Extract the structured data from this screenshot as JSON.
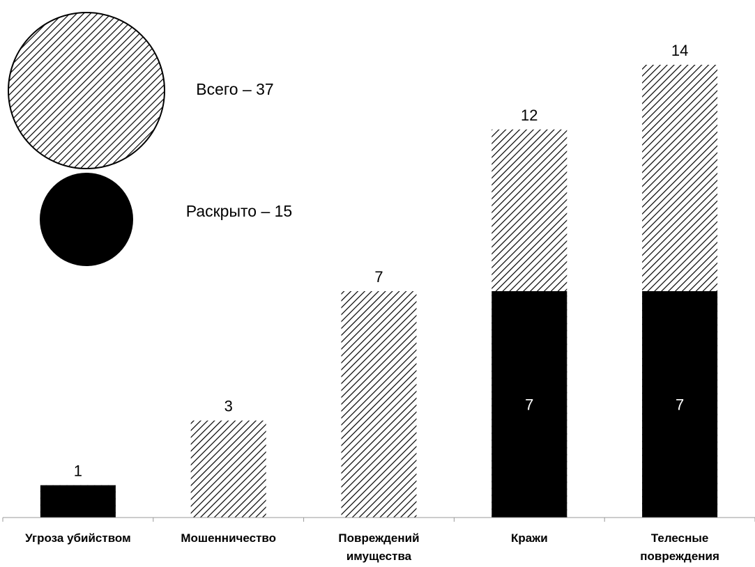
{
  "chart_data": {
    "type": "bar",
    "categories": [
      [
        "Угроза убийством"
      ],
      [
        "Мошенничество"
      ],
      [
        "Повреждений",
        "имущества"
      ],
      [
        "Кражи"
      ],
      [
        "Телесные",
        "повреждения"
      ]
    ],
    "series": [
      {
        "name": "Всего",
        "values": [
          1,
          3,
          7,
          12,
          14
        ],
        "pattern": "hatch"
      },
      {
        "name": "Раскрыто",
        "values": [
          1,
          0,
          0,
          7,
          7
        ],
        "pattern": "solid"
      }
    ],
    "data_labels": {
      "totals": [
        "1",
        "3",
        "7",
        "12",
        "14"
      ],
      "solved": [
        "",
        "",
        "",
        "7",
        "7"
      ]
    },
    "legend": [
      {
        "label": "Всего – 37",
        "pattern": "hatch",
        "position": "top-left"
      },
      {
        "label": "Раскрыто – 15",
        "pattern": "solid",
        "position": "top-left"
      }
    ],
    "ylim": [
      0,
      14
    ],
    "grid": false,
    "colors": {
      "solid": "#000000",
      "hatch_line": "#000000",
      "background": "#ffffff"
    }
  }
}
